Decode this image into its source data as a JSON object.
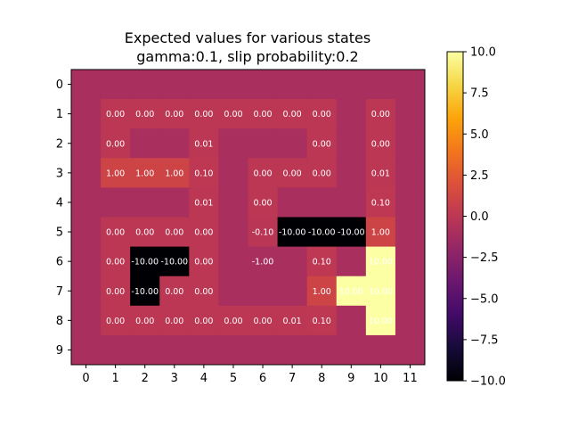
{
  "chart_data": {
    "type": "heatmap",
    "title_lines": [
      "Expected values for various states",
      "gamma:0.1, slip probability:0.2"
    ],
    "x_ticks": [
      "0",
      "1",
      "2",
      "3",
      "4",
      "5",
      "6",
      "7",
      "8",
      "9",
      "10",
      "11"
    ],
    "y_ticks": [
      "0",
      "1",
      "2",
      "3",
      "4",
      "5",
      "6",
      "7",
      "8",
      "9"
    ],
    "colormap": "inferno",
    "vmin": -10.0,
    "vmax": 10.0,
    "wall_value": -1.0,
    "colorbar_ticks": [
      "10.0",
      "7.5",
      "5.0",
      "2.5",
      "0.0",
      "−2.5",
      "−5.0",
      "−7.5",
      "−10.0"
    ],
    "colorbar_tick_values": [
      10.0,
      7.5,
      5.0,
      2.5,
      0.0,
      -2.5,
      -5.0,
      -7.5,
      -10.0
    ],
    "grid_values": [
      [
        -1,
        -1,
        -1,
        -1,
        -1,
        -1,
        -1,
        -1,
        -1,
        -1,
        -1,
        -1
      ],
      [
        -1,
        0.0,
        0.0,
        0.0,
        0.0,
        0.0,
        0.0,
        0.0,
        0.0,
        -1,
        0.0,
        -1
      ],
      [
        -1,
        0.0,
        -1,
        -1,
        0.01,
        -1,
        -1,
        -1,
        0.0,
        -1,
        0.0,
        -1
      ],
      [
        -1,
        1.0,
        1.0,
        1.0,
        0.1,
        -1,
        0.0,
        0.0,
        0.0,
        -1,
        0.01,
        -1
      ],
      [
        -1,
        -1,
        -1,
        -1,
        0.01,
        -1,
        0.0,
        -1,
        -1,
        -1,
        0.1,
        -1
      ],
      [
        -1,
        0.0,
        0.0,
        0.0,
        0.0,
        -1,
        -0.1,
        -10.0,
        -10.0,
        -10.0,
        1.0,
        -1
      ],
      [
        -1,
        0.0,
        -10.0,
        -10.0,
        0.0,
        -1,
        -1.0,
        -1,
        0.1,
        -1,
        10.0,
        -1
      ],
      [
        -1,
        0.0,
        -10.0,
        0.0,
        0.0,
        -1,
        -1,
        -1,
        1.0,
        10.0,
        10.0,
        -1
      ],
      [
        -1,
        0.0,
        0.0,
        0.0,
        0.0,
        0.0,
        0.0,
        0.01,
        0.1,
        -1,
        10.0,
        -1
      ],
      [
        -1,
        -1,
        -1,
        -1,
        -1,
        -1,
        -1,
        -1,
        -1,
        -1,
        -1,
        -1
      ]
    ],
    "cell_labels": [
      [
        "",
        "",
        "",
        "",
        "",
        "",
        "",
        "",
        "",
        "",
        "",
        ""
      ],
      [
        "",
        "0.00",
        "0.00",
        "0.00",
        "0.00",
        "0.00",
        "0.00",
        "0.00",
        "0.00",
        "",
        "0.00",
        ""
      ],
      [
        "",
        "0.00",
        "",
        "",
        "0.01",
        "",
        "",
        "",
        "0.00",
        "",
        "0.00",
        ""
      ],
      [
        "",
        "1.00",
        "1.00",
        "1.00",
        "0.10",
        "",
        "0.00",
        "0.00",
        "0.00",
        "",
        "0.01",
        ""
      ],
      [
        "",
        "",
        "",
        "",
        "0.01",
        "",
        "0.00",
        "",
        "",
        "",
        "0.10",
        ""
      ],
      [
        "",
        "0.00",
        "0.00",
        "0.00",
        "0.00",
        "",
        "-0.10",
        "-10.00",
        "-10.00",
        "-10.00",
        "1.00",
        ""
      ],
      [
        "",
        "0.00",
        "-10.00",
        "-10.00",
        "0.00",
        "",
        "-1.00",
        "",
        "0.10",
        "",
        "10.00",
        ""
      ],
      [
        "",
        "0.00",
        "-10.00",
        "0.00",
        "0.00",
        "",
        "",
        "",
        "1.00",
        "10.00",
        "10.00",
        ""
      ],
      [
        "",
        "0.00",
        "0.00",
        "0.00",
        "0.00",
        "0.00",
        "0.00",
        "0.01",
        "0.10",
        "",
        "10.00",
        ""
      ],
      [
        "",
        "",
        "",
        "",
        "",
        "",
        "",
        "",
        "",
        "",
        "",
        ""
      ]
    ]
  }
}
